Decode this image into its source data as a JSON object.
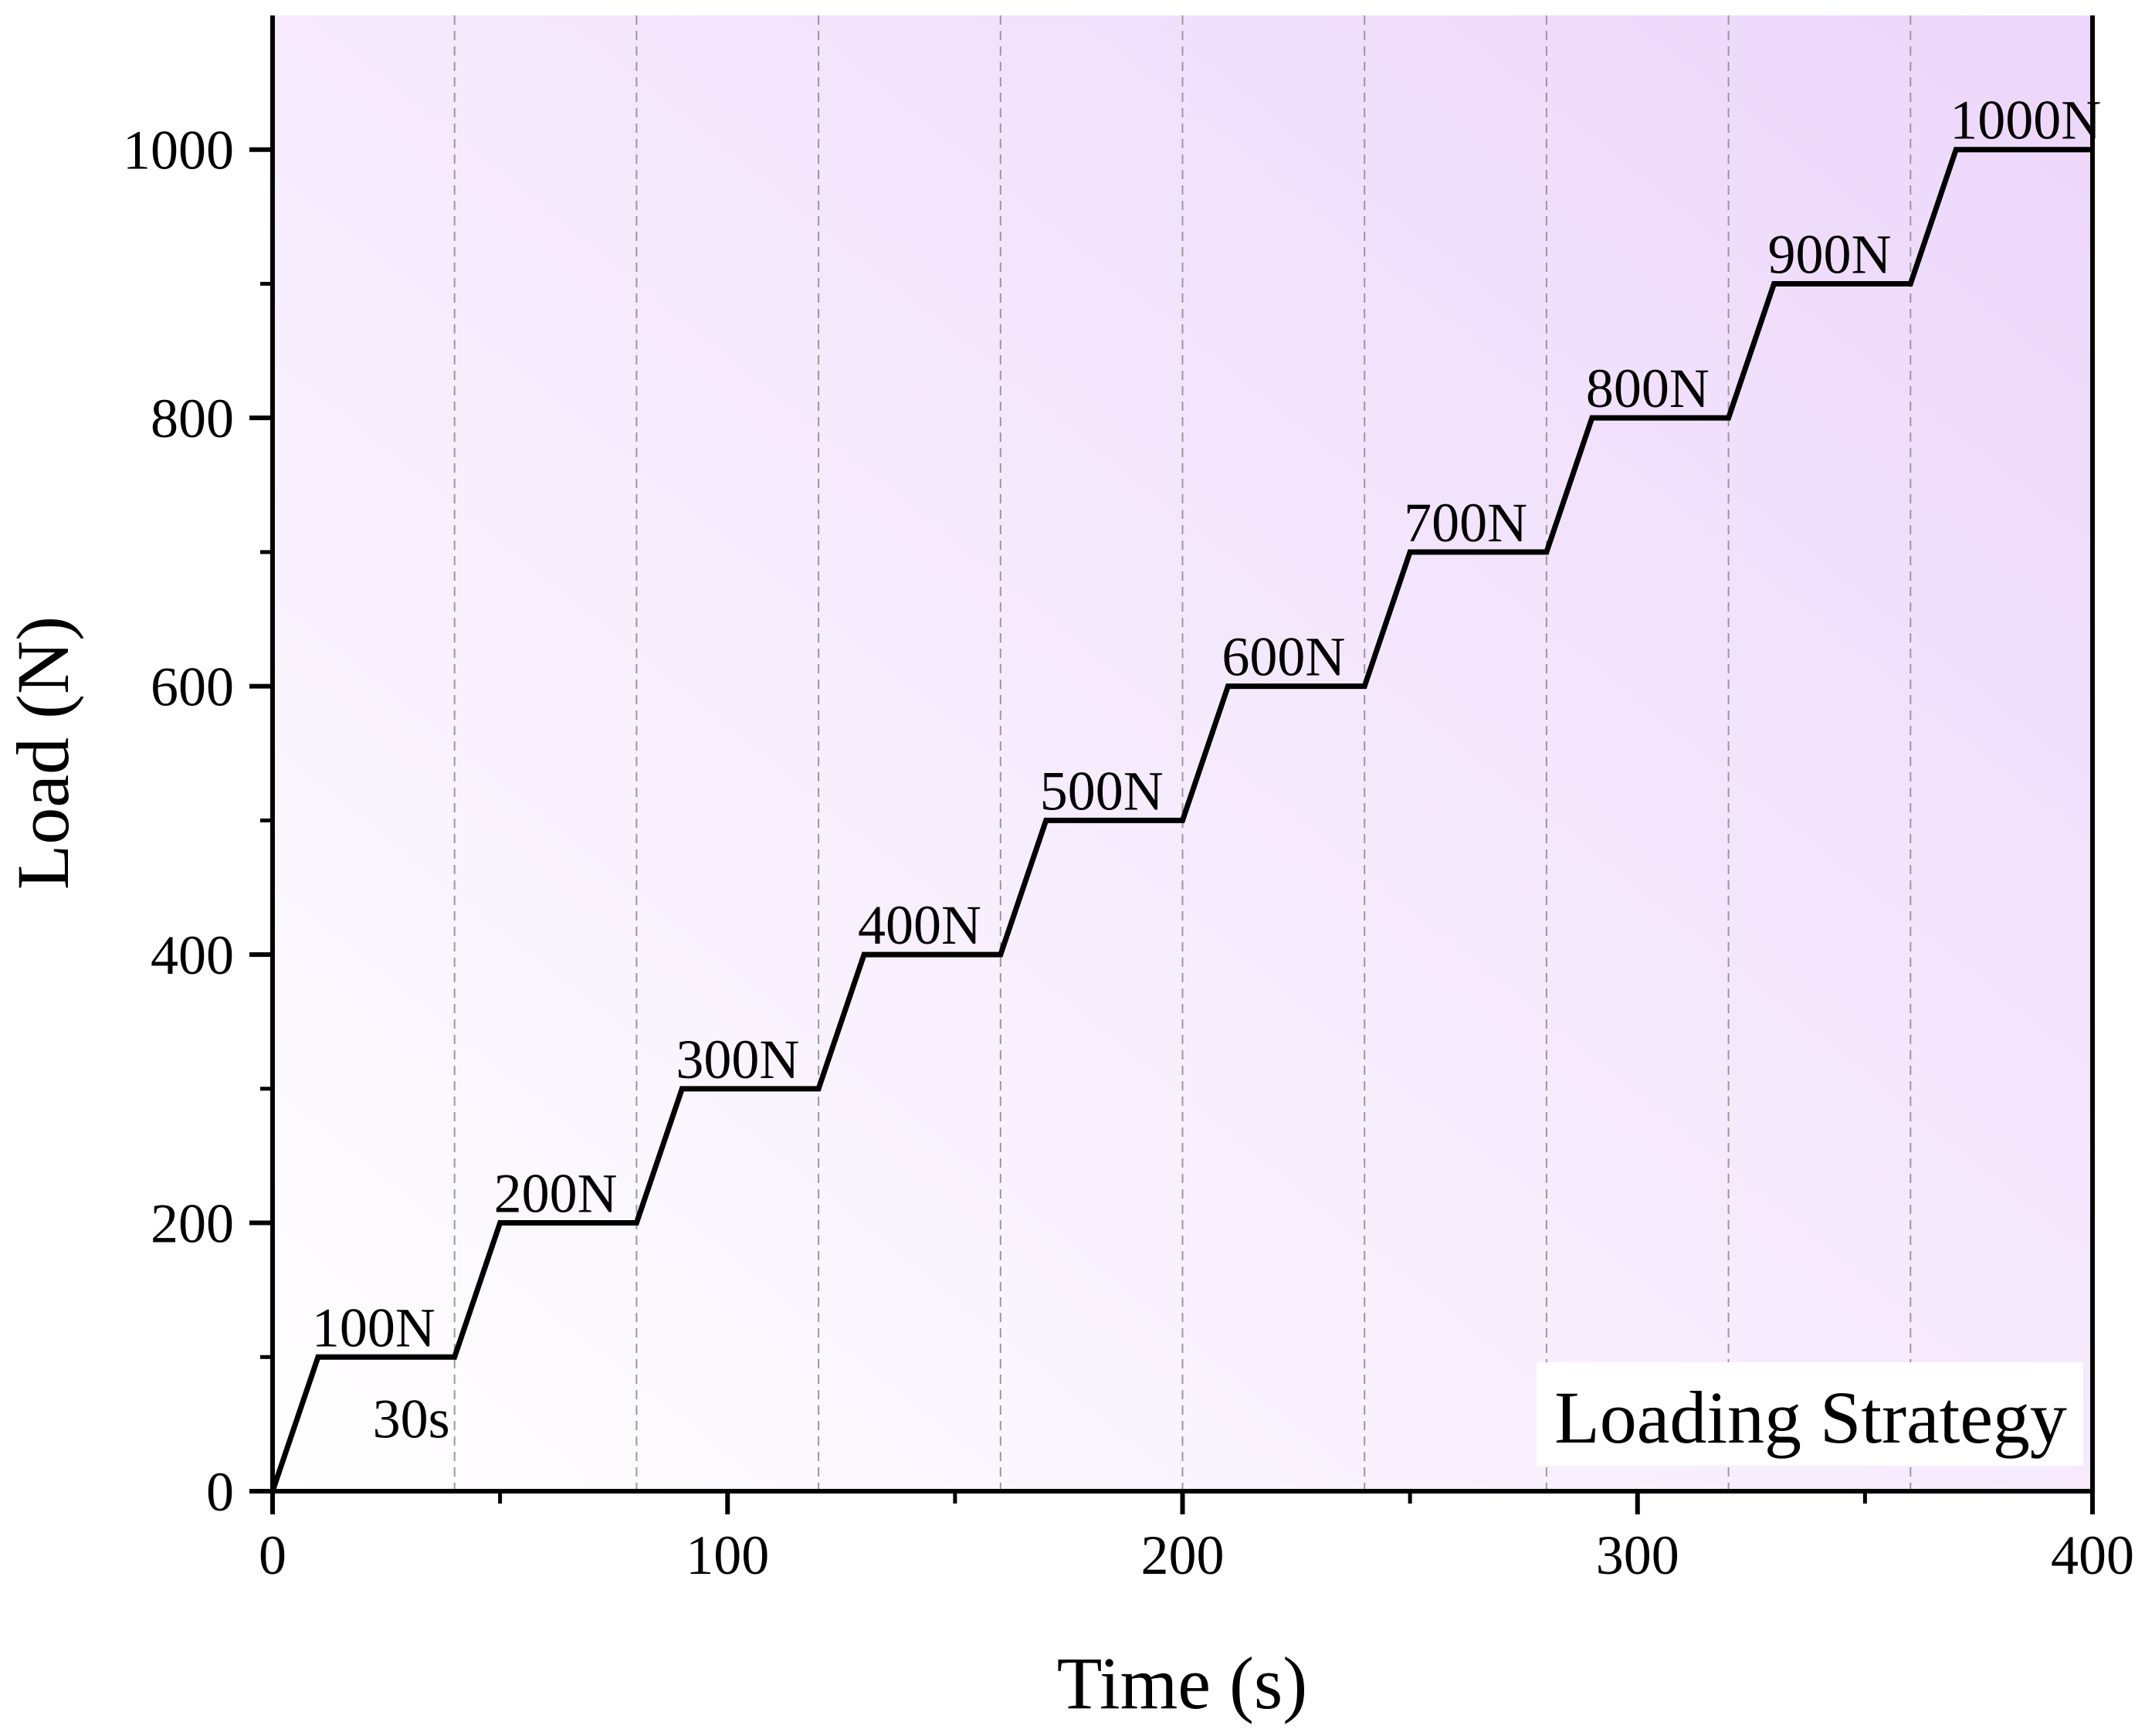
{
  "chart_data": {
    "type": "line",
    "title": "",
    "xlabel": "Time (s)",
    "ylabel": "Load (N)",
    "xlim": [
      0,
      400
    ],
    "ylim": [
      0,
      1100
    ],
    "xticks": [
      0,
      100,
      200,
      300,
      400
    ],
    "xtick_labels": [
      "0",
      "100",
      "200",
      "300",
      "400"
    ],
    "yticks": [
      0,
      200,
      400,
      600,
      800,
      1000
    ],
    "ytick_labels": [
      "0",
      "200",
      "400",
      "600",
      "800",
      "1000"
    ],
    "x_minor_ticks": [
      50,
      150,
      250,
      350
    ],
    "y_minor_ticks": [
      100,
      300,
      500,
      700,
      900
    ],
    "grid": "dashed vertical lines at hold ends",
    "vertical_dashed_lines": [
      40,
      80,
      120,
      160,
      200,
      240,
      280,
      320,
      360
    ],
    "series": [
      {
        "name": "Loading Strategy",
        "color": "#000000",
        "x": [
          0,
          10,
          40,
          50,
          80,
          90,
          120,
          130,
          160,
          170,
          200,
          210,
          240,
          250,
          280,
          290,
          320,
          330,
          360,
          370,
          400
        ],
        "y": [
          0,
          100,
          100,
          200,
          200,
          300,
          300,
          400,
          400,
          500,
          500,
          600,
          600,
          700,
          700,
          800,
          800,
          900,
          900,
          1000,
          1000
        ]
      }
    ],
    "step_labels": [
      {
        "text": "100N",
        "x": 10,
        "y": 100
      },
      {
        "text": "200N",
        "x": 50,
        "y": 200
      },
      {
        "text": "300N",
        "x": 90,
        "y": 300
      },
      {
        "text": "400N",
        "x": 130,
        "y": 400
      },
      {
        "text": "500N",
        "x": 170,
        "y": 500
      },
      {
        "text": "600N",
        "x": 210,
        "y": 600
      },
      {
        "text": "700N",
        "x": 250,
        "y": 700
      },
      {
        "text": "800N",
        "x": 290,
        "y": 800
      },
      {
        "text": "900N",
        "x": 330,
        "y": 900
      },
      {
        "text": "1000N",
        "x": 370,
        "y": 1000
      }
    ],
    "annotations": [
      {
        "text": "30s",
        "x": 22,
        "y": 40
      }
    ],
    "legend": {
      "text": "Loading Strategy",
      "position": "bottom-right"
    },
    "colors": {
      "background_start": "#ffffff",
      "background_end": "#ecd6fa",
      "line": "#000000",
      "grid": "#999999"
    }
  }
}
